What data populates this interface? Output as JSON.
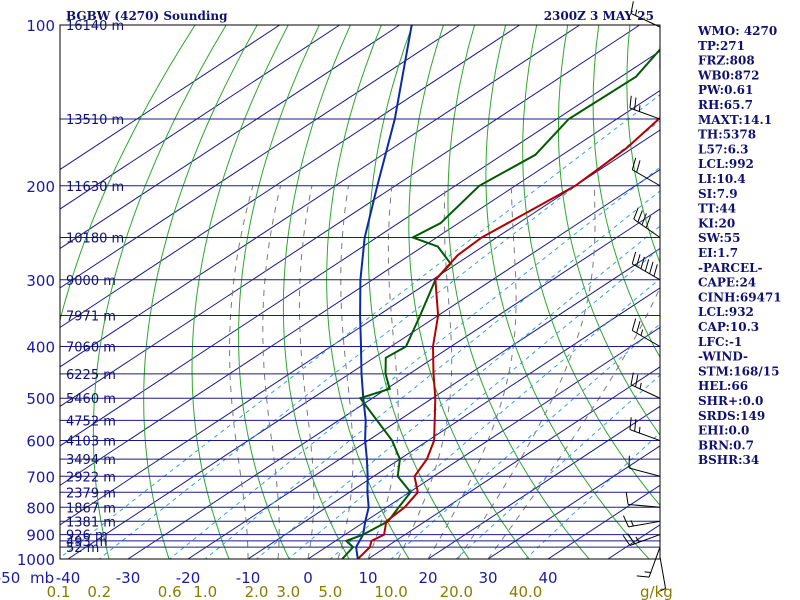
{
  "header": {
    "station": "BGBW (4270) Sounding",
    "time": "2300Z  3 MAY 25"
  },
  "axis": {
    "pressure_unit": "mb",
    "mixing_ratio_unit": "g/kg"
  },
  "chart_data": {
    "type": "skew-t",
    "pressure_ticks": [
      100,
      200,
      300,
      400,
      500,
      600,
      700,
      800,
      900,
      1000
    ],
    "pressure_levels": [
      100,
      150,
      200,
      250,
      300,
      350,
      400,
      450,
      500,
      550,
      600,
      650,
      700,
      750,
      800,
      850,
      900,
      925,
      950,
      1000
    ],
    "height_labels": [
      {
        "p": 100,
        "text": "16140 m"
      },
      {
        "p": 150,
        "text": "13510 m"
      },
      {
        "p": 200,
        "text": "11630 m"
      },
      {
        "p": 250,
        "text": "10180 m"
      },
      {
        "p": 300,
        "text": "9000 m"
      },
      {
        "p": 350,
        "text": "7971 m"
      },
      {
        "p": 400,
        "text": "7060 m"
      },
      {
        "p": 450,
        "text": "6225 m"
      },
      {
        "p": 500,
        "text": "5460 m"
      },
      {
        "p": 550,
        "text": "4752 m"
      },
      {
        "p": 600,
        "text": "4103 m"
      },
      {
        "p": 650,
        "text": "3494 m"
      },
      {
        "p": 700,
        "text": "2922 m"
      },
      {
        "p": 750,
        "text": "2379 m"
      },
      {
        "p": 800,
        "text": "1867 m"
      },
      {
        "p": 850,
        "text": "1381 m"
      },
      {
        "p": 900,
        "text": "926 m"
      },
      {
        "p": 925,
        "text": "493 m"
      },
      {
        "p": 950,
        "text": "52 m"
      }
    ],
    "temperature_ticks": [
      -50,
      -40,
      -30,
      -20,
      -10,
      0,
      10,
      20,
      30,
      40
    ],
    "mixing_ratio_ticks": [
      "0.1",
      "0.2",
      "0.6",
      "1.0",
      "2.0",
      "3.0",
      "5.0",
      "10.0",
      "20.0",
      "40.0"
    ],
    "temperature_profile": [
      {
        "p": 1000,
        "t": 8.3
      },
      {
        "p": 950,
        "t": 7.3
      },
      {
        "p": 925,
        "t": 6.0
      },
      {
        "p": 900,
        "t": 6.5
      },
      {
        "p": 850,
        "t": 3.5
      },
      {
        "p": 800,
        "t": 3.0
      },
      {
        "p": 750,
        "t": 1.4
      },
      {
        "p": 700,
        "t": -3.2
      },
      {
        "p": 650,
        "t": -5.5
      },
      {
        "p": 600,
        "t": -9.0
      },
      {
        "p": 550,
        "t": -14.0
      },
      {
        "p": 500,
        "t": -19.5
      },
      {
        "p": 450,
        "t": -26.0
      },
      {
        "p": 400,
        "t": -33.0
      },
      {
        "p": 350,
        "t": -40.0
      },
      {
        "p": 300,
        "t": -49.5
      },
      {
        "p": 270,
        "t": -52.0
      },
      {
        "p": 250,
        "t": -52.5
      },
      {
        "p": 200,
        "t": -50.0
      },
      {
        "p": 170,
        "t": -51.0
      },
      {
        "p": 150,
        "t": -53.0
      },
      {
        "p": 100,
        "t": -59.0
      }
    ],
    "dewpoint_profile": [
      {
        "p": 1000,
        "td": 5.7
      },
      {
        "p": 950,
        "td": 4.5
      },
      {
        "p": 925,
        "td": 1.8
      },
      {
        "p": 900,
        "td": 3.0
      },
      {
        "p": 850,
        "td": 3.8
      },
      {
        "p": 800,
        "td": 2.0
      },
      {
        "p": 750,
        "td": 0.2
      },
      {
        "p": 700,
        "td": -6.0
      },
      {
        "p": 650,
        "td": -10.0
      },
      {
        "p": 600,
        "td": -16.0
      },
      {
        "p": 500,
        "td": -32.0
      },
      {
        "p": 480,
        "td": -29.5
      },
      {
        "p": 450,
        "td": -34.0
      },
      {
        "p": 420,
        "td": -38.0
      },
      {
        "p": 400,
        "td": -37.5
      },
      {
        "p": 350,
        "td": -43.0
      },
      {
        "p": 300,
        "td": -49.5
      },
      {
        "p": 280,
        "td": -51.0
      },
      {
        "p": 260,
        "td": -57.5
      },
      {
        "p": 250,
        "td": -64.0
      },
      {
        "p": 235,
        "td": -63.0
      },
      {
        "p": 200,
        "td": -66.0
      },
      {
        "p": 175,
        "td": -64.5
      },
      {
        "p": 150,
        "td": -68.0
      },
      {
        "p": 125,
        "td": -67.5
      },
      {
        "p": 100,
        "td": -73.0
      }
    ],
    "parcel_profile": [
      {
        "p": 1000,
        "t": 8.3
      },
      {
        "p": 950,
        "t": 5.0
      },
      {
        "p": 900,
        "t": 3.0
      },
      {
        "p": 850,
        "t": 0.0
      },
      {
        "p": 800,
        "t": -3.0
      },
      {
        "p": 750,
        "t": -7.0
      },
      {
        "p": 700,
        "t": -11.0
      },
      {
        "p": 650,
        "t": -15.5
      },
      {
        "p": 600,
        "t": -20.5
      },
      {
        "p": 550,
        "t": -25.5
      },
      {
        "p": 500,
        "t": -31.5
      },
      {
        "p": 450,
        "t": -38.0
      },
      {
        "p": 400,
        "t": -45.0
      },
      {
        "p": 350,
        "t": -53.0
      },
      {
        "p": 300,
        "t": -62.0
      },
      {
        "p": 250,
        "t": -72.0
      },
      {
        "p": 200,
        "t": -83.0
      },
      {
        "p": 150,
        "t": -97.0
      },
      {
        "p": 100,
        "t": -118.0
      }
    ],
    "dry_adiabats_theta_k": [
      230,
      240,
      250,
      260,
      270,
      280,
      290,
      300,
      310,
      320,
      330,
      340,
      350,
      360,
      370,
      380,
      390,
      400,
      410,
      420,
      430,
      440
    ],
    "moist_adiabats_c": [
      -10,
      -5,
      0,
      5,
      10,
      15,
      20,
      25,
      30
    ],
    "mixing_ratio_lines_gkg": [
      0.1,
      0.2,
      0.6,
      1,
      2,
      3,
      5,
      10,
      20,
      40
    ],
    "winds": [
      {
        "p": 1000,
        "dir": 170,
        "kt": 5
      },
      {
        "p": 950,
        "dir": 200,
        "kt": 15
      },
      {
        "p": 900,
        "dir": 250,
        "kt": 25
      },
      {
        "p": 850,
        "dir": 260,
        "kt": 15
      },
      {
        "p": 800,
        "dir": 275,
        "kt": 10
      },
      {
        "p": 700,
        "dir": 285,
        "kt": 10
      },
      {
        "p": 600,
        "dir": 290,
        "kt": 25
      },
      {
        "p": 500,
        "dir": 295,
        "kt": 25
      },
      {
        "p": 400,
        "dir": 300,
        "kt": 25
      },
      {
        "p": 300,
        "dir": 300,
        "kt": 60
      },
      {
        "p": 250,
        "dir": 305,
        "kt": 40
      },
      {
        "p": 200,
        "dir": 300,
        "kt": 20
      },
      {
        "p": 150,
        "dir": 290,
        "kt": 25
      },
      {
        "p": 100,
        "dir": 295,
        "kt": 15
      }
    ]
  },
  "indices": [
    "WMO: 4270",
    "TP:271",
    "FRZ:808",
    "WB0:872",
    "PW:0.61",
    "RH:65.7",
    "MAXT:14.1",
    "TH:5378",
    "L57:6.3",
    "LCL:992",
    "LI:10.4",
    "SI:7.9",
    "TT:44",
    "KI:20",
    "SW:55",
    "EI:1.7",
    "-PARCEL-",
    "CAPE:24",
    "CINH:69471",
    "LCL:932",
    "CAP:10.3",
    "LFC:-1",
    "-WIND-",
    "STM:168/15",
    "HEL:66",
    "SHR+:0.0",
    "SRDS:149",
    "EHI:0.0",
    "BRN:0.7",
    "BSHR:34"
  ],
  "colors": {
    "frame": "#000000",
    "isobar": "#1a1a8c",
    "isotherm": "#1a1a8c",
    "dry_adiabat": "#2fa52f",
    "moist_adiabat": "#7a7a7a",
    "mixing_ratio": "#3aa0d8",
    "temperature": "#b40000",
    "dewpoint": "#005a00",
    "parcel": "#0a2aa6",
    "wind": "#000000",
    "text": "#101070"
  }
}
